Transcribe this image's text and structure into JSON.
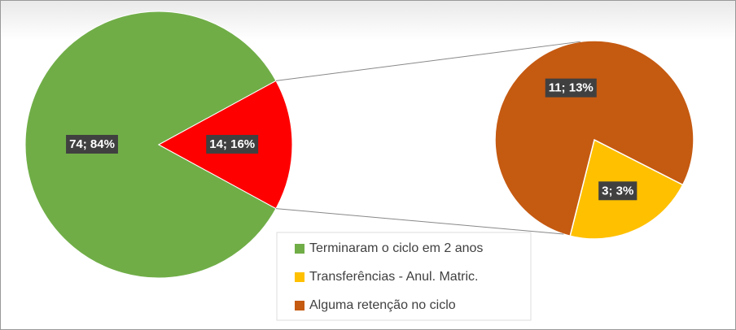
{
  "chart_data": {
    "type": "pie",
    "categories": [
      "Terminaram o ciclo em 2 anos",
      "Transferências - Anul. Matric.",
      "Alguma retenção no ciclo"
    ],
    "values": [
      74,
      3,
      11
    ],
    "percents": [
      84,
      3,
      13
    ],
    "value_labels": [
      "74; 84%",
      "3; 3%",
      "11; 13%"
    ],
    "colors": [
      "#70ad47",
      "#ffc000",
      "#c55a11"
    ],
    "secondary_count": 2,
    "other": {
      "value": 14,
      "percent": 16,
      "value_label": "14; 16%",
      "color": "#ff0000"
    }
  }
}
